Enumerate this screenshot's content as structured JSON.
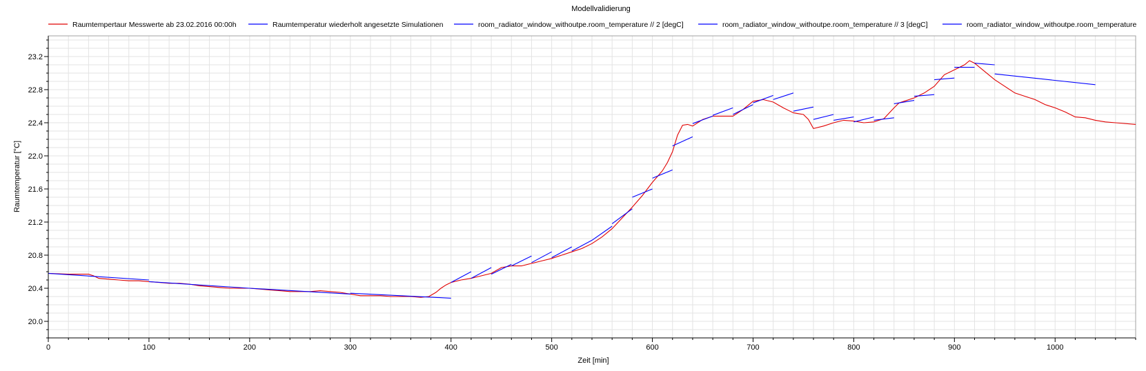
{
  "chart_data": {
    "type": "line",
    "title": "Modellvalidierung",
    "xlabel": "Zeit [min]",
    "ylabel": "Raumtemperatur [°C]",
    "xlim": [
      0,
      1080
    ],
    "ylim": [
      19.8,
      23.45
    ],
    "xticks": [
      0,
      100,
      200,
      300,
      400,
      500,
      600,
      700,
      800,
      900,
      1000
    ],
    "xtick_labels": [
      "0",
      "100",
      "200",
      "300",
      "400",
      "500",
      "600",
      "700",
      "800",
      "900",
      "1000"
    ],
    "yticks": [
      20.0,
      20.4,
      20.8,
      21.2,
      21.6,
      22.0,
      22.4,
      22.8,
      23.2
    ],
    "ytick_labels": [
      "20.0",
      "20.4",
      "20.8",
      "21.2",
      "21.6",
      "22.0",
      "22.4",
      "22.8",
      "23.2"
    ],
    "grid": true,
    "legend_position": "top",
    "series": [
      {
        "name": "Raumtempertaur Messwerte ab 23.02.2016 00:00h",
        "color": "#e00000",
        "x": [
          0,
          20,
          40,
          45,
          50,
          60,
          70,
          80,
          90,
          100,
          110,
          120,
          130,
          140,
          150,
          160,
          170,
          180,
          190,
          200,
          210,
          220,
          230,
          240,
          250,
          260,
          270,
          280,
          290,
          300,
          310,
          320,
          330,
          340,
          350,
          360,
          370,
          378,
          385,
          390,
          395,
          400,
          410,
          420,
          430,
          440,
          450,
          460,
          470,
          480,
          490,
          500,
          510,
          520,
          530,
          540,
          550,
          560,
          570,
          580,
          590,
          600,
          610,
          615,
          620,
          625,
          630,
          635,
          640,
          650,
          660,
          670,
          680,
          690,
          700,
          710,
          720,
          730,
          740,
          750,
          755,
          760,
          770,
          780,
          790,
          800,
          810,
          820,
          830,
          840,
          845,
          850,
          860,
          870,
          880,
          890,
          900,
          910,
          915,
          920,
          930,
          940,
          950,
          960,
          970,
          980,
          990,
          1000,
          1010,
          1020,
          1030,
          1040,
          1050,
          1060,
          1080
        ],
        "y": [
          20.58,
          20.57,
          20.57,
          20.55,
          20.52,
          20.51,
          20.5,
          20.49,
          20.49,
          20.48,
          20.47,
          20.46,
          20.46,
          20.45,
          20.43,
          20.42,
          20.41,
          20.4,
          20.4,
          20.4,
          20.39,
          20.38,
          20.37,
          20.36,
          20.36,
          20.36,
          20.37,
          20.36,
          20.35,
          20.33,
          20.31,
          20.31,
          20.31,
          20.3,
          20.3,
          20.3,
          20.29,
          20.3,
          20.35,
          20.4,
          20.44,
          20.47,
          20.5,
          20.52,
          20.55,
          20.58,
          20.65,
          20.67,
          20.67,
          20.7,
          20.73,
          20.76,
          20.8,
          20.84,
          20.88,
          20.94,
          21.02,
          21.12,
          21.25,
          21.38,
          21.52,
          21.68,
          21.82,
          21.92,
          22.05,
          22.25,
          22.37,
          22.38,
          22.36,
          22.44,
          22.48,
          22.48,
          22.48,
          22.56,
          22.66,
          22.68,
          22.65,
          22.58,
          22.52,
          22.5,
          22.44,
          22.33,
          22.36,
          22.4,
          22.43,
          22.42,
          22.4,
          22.41,
          22.45,
          22.58,
          22.64,
          22.66,
          22.7,
          22.76,
          22.84,
          22.98,
          23.04,
          23.1,
          23.15,
          23.12,
          23.02,
          22.92,
          22.84,
          22.76,
          22.72,
          22.68,
          22.62,
          22.58,
          22.53,
          22.47,
          22.46,
          22.43,
          22.41,
          22.4,
          22.38
        ]
      },
      {
        "name": "Raumtemperatur wiederholt angesetzte Simulationen",
        "color": "#0000ff",
        "segments": [
          {
            "x": [
              0,
              100
            ],
            "y": [
              20.58,
              20.5
            ]
          },
          {
            "x": [
              100,
              200
            ],
            "y": [
              20.48,
              20.4
            ]
          },
          {
            "x": [
              200,
              300
            ],
            "y": [
              20.4,
              20.33
            ]
          },
          {
            "x": [
              300,
              400
            ],
            "y": [
              20.34,
              20.28
            ]
          },
          {
            "x": [
              400,
              420
            ],
            "y": [
              20.47,
              20.6
            ]
          },
          {
            "x": [
              420,
              440
            ],
            "y": [
              20.52,
              20.65
            ]
          },
          {
            "x": [
              440,
              460
            ],
            "y": [
              20.57,
              20.69
            ]
          },
          {
            "x": [
              460,
              480
            ],
            "y": [
              20.67,
              20.79
            ]
          },
          {
            "x": [
              480,
              500
            ],
            "y": [
              20.71,
              20.84
            ]
          },
          {
            "x": [
              500,
              520
            ],
            "y": [
              20.77,
              20.9
            ]
          },
          {
            "x": [
              520,
              540
            ],
            "y": [
              20.85,
              20.98
            ]
          },
          {
            "x": [
              540,
              560
            ],
            "y": [
              20.98,
              21.15
            ]
          },
          {
            "x": [
              560,
              580
            ],
            "y": [
              21.18,
              21.36
            ]
          },
          {
            "x": [
              580,
              600
            ],
            "y": [
              21.5,
              21.6
            ]
          },
          {
            "x": [
              600,
              620
            ],
            "y": [
              21.73,
              21.83
            ]
          },
          {
            "x": [
              620,
              640
            ],
            "y": [
              22.12,
              22.23
            ]
          },
          {
            "x": [
              640,
              660
            ],
            "y": [
              22.39,
              22.48
            ]
          },
          {
            "x": [
              660,
              680
            ],
            "y": [
              22.49,
              22.58
            ]
          },
          {
            "x": [
              680,
              700
            ],
            "y": [
              22.5,
              22.62
            ]
          },
          {
            "x": [
              700,
              720
            ],
            "y": [
              22.64,
              22.73
            ]
          },
          {
            "x": [
              720,
              740
            ],
            "y": [
              22.68,
              22.76
            ]
          },
          {
            "x": [
              740,
              760
            ],
            "y": [
              22.54,
              22.59
            ]
          },
          {
            "x": [
              760,
              780
            ],
            "y": [
              22.44,
              22.5
            ]
          },
          {
            "x": [
              780,
              800
            ],
            "y": [
              22.43,
              22.47
            ]
          },
          {
            "x": [
              800,
              820
            ],
            "y": [
              22.41,
              22.47
            ]
          },
          {
            "x": [
              820,
              840
            ],
            "y": [
              22.43,
              22.46
            ]
          },
          {
            "x": [
              840,
              860
            ],
            "y": [
              22.63,
              22.67
            ]
          },
          {
            "x": [
              860,
              880
            ],
            "y": [
              22.72,
              22.74
            ]
          },
          {
            "x": [
              880,
              900
            ],
            "y": [
              22.92,
              22.94
            ]
          },
          {
            "x": [
              900,
              920
            ],
            "y": [
              23.07,
              23.07
            ]
          },
          {
            "x": [
              920,
              940
            ],
            "y": [
              23.12,
              23.1
            ]
          },
          {
            "x": [
              940,
              1040
            ],
            "y": [
              22.99,
              22.86
            ]
          }
        ]
      },
      {
        "name": "room_radiator_window_withoutpe.room_temperature // 2 [degC]",
        "color": "#0000ff",
        "segments": []
      },
      {
        "name": "room_radiator_window_withoutpe.room_temperature // 3 [degC]",
        "color": "#0000ff",
        "segments": []
      },
      {
        "name": "room_radiator_window_withoutpe.room_temperature",
        "color": "#0000ff",
        "segments": []
      }
    ]
  }
}
